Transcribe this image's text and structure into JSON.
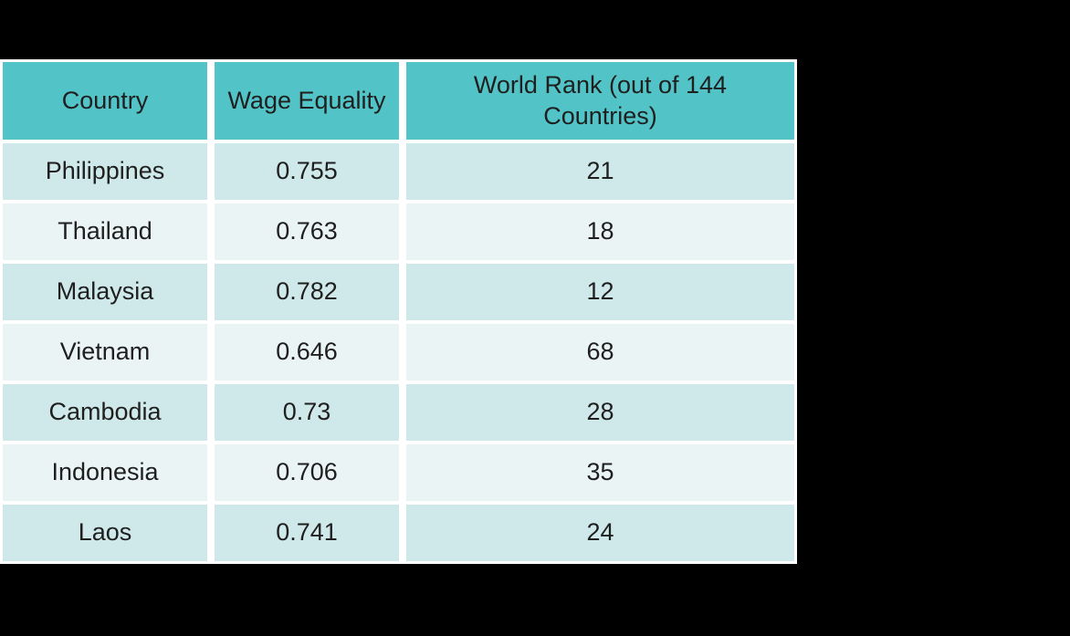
{
  "slide": {
    "background_color": "#000000"
  },
  "table": {
    "columns": [
      "Country",
      "Wage Equality",
      "World Rank (out of 144 Countries)"
    ],
    "rows": [
      {
        "country": "Philippines",
        "wage_equality": "0.755",
        "world_rank": "21"
      },
      {
        "country": "Thailand",
        "wage_equality": "0.763",
        "world_rank": "18"
      },
      {
        "country": "Malaysia",
        "wage_equality": "0.782",
        "world_rank": "12"
      },
      {
        "country": "Vietnam",
        "wage_equality": "0.646",
        "world_rank": "68"
      },
      {
        "country": "Cambodia",
        "wage_equality": "0.73",
        "world_rank": "28"
      },
      {
        "country": "Indonesia",
        "wage_equality": "0.706",
        "world_rank": "35"
      },
      {
        "country": "Laos",
        "wage_equality": "0.741",
        "world_rank": "24"
      }
    ],
    "colors": {
      "header_bg": "#52c4c8",
      "row_dark_bg": "#cfe8e9",
      "row_light_bg": "#eaf4f5",
      "gridline": "#ffffff",
      "text": "#1f1f1f"
    }
  },
  "chart_data": {
    "type": "table",
    "title": "",
    "columns": [
      "Country",
      "Wage Equality",
      "World Rank (out of 144 Countries)"
    ],
    "rows": [
      [
        "Philippines",
        0.755,
        21
      ],
      [
        "Thailand",
        0.763,
        18
      ],
      [
        "Malaysia",
        0.782,
        12
      ],
      [
        "Vietnam",
        0.646,
        68
      ],
      [
        "Cambodia",
        0.73,
        28
      ],
      [
        "Indonesia",
        0.706,
        35
      ],
      [
        "Laos",
        0.741,
        24
      ]
    ]
  }
}
